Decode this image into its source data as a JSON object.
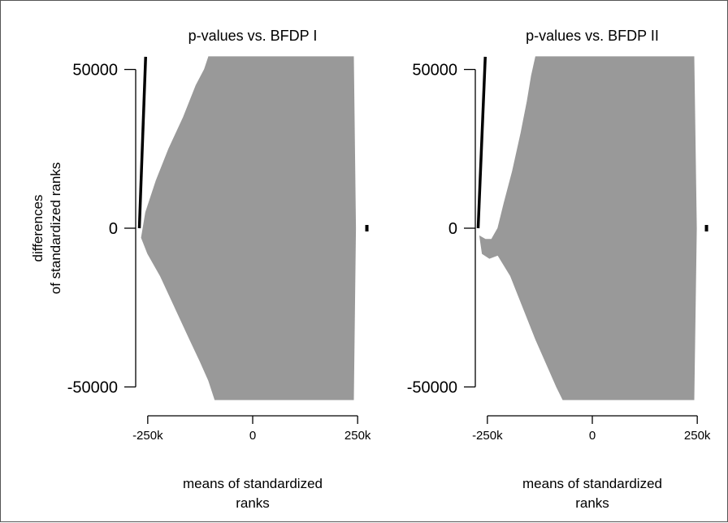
{
  "chart_data": [
    {
      "type": "scatter",
      "title": "p-values vs. BFDP I",
      "xlabel": "means of standardized ranks",
      "ylabel": "differences of standardized ranks",
      "x_ticks": [
        "-250k",
        "0",
        "250k"
      ],
      "y_ticks": [
        "50000",
        "0",
        "-50000"
      ],
      "xlim": [
        -300000,
        300000
      ],
      "ylim": [
        -55000,
        55000
      ],
      "tick_values": {
        "x": [
          -250000,
          0,
          250000
        ],
        "y": [
          50000,
          0,
          -50000
        ]
      },
      "dense_region": {
        "color": "#999999",
        "upper": [
          [
            -265000,
            -3000
          ],
          [
            -255000,
            5000
          ],
          [
            -230000,
            15000
          ],
          [
            -200000,
            25000
          ],
          [
            -165000,
            35000
          ],
          [
            -135000,
            45000
          ],
          [
            -115000,
            50000
          ],
          [
            -105000,
            54000
          ],
          [
            240000,
            54000
          ]
        ],
        "lower": [
          [
            -265000,
            -3000
          ],
          [
            -250000,
            -8000
          ],
          [
            -220000,
            -15000
          ],
          [
            -185000,
            -25000
          ],
          [
            -150000,
            -35000
          ],
          [
            -125000,
            -42000
          ],
          [
            -105000,
            -48000
          ],
          [
            -90000,
            -54000
          ],
          [
            240000,
            -54000
          ],
          [
            245000,
            0
          ]
        ]
      },
      "line_series": {
        "color": "#000000",
        "points": [
          [
            -270000,
            0
          ],
          [
            -255000,
            54000
          ]
        ]
      },
      "marker": {
        "color": "#000000",
        "points": [
          [
            272000,
            0
          ]
        ]
      }
    },
    {
      "type": "scatter",
      "title": "p-values vs. BFDP II",
      "xlabel": "means of standardized ranks",
      "ylabel": "",
      "x_ticks": [
        "-250k",
        "0",
        "250k"
      ],
      "y_ticks": [
        "50000",
        "0",
        "-50000"
      ],
      "xlim": [
        -300000,
        300000
      ],
      "ylim": [
        -55000,
        55000
      ],
      "tick_values": {
        "x": [
          -250000,
          0,
          250000
        ],
        "y": [
          50000,
          0,
          -50000
        ]
      },
      "dense_region": {
        "color": "#999999",
        "upper": [
          [
            -268000,
            -2500
          ],
          [
            -255000,
            -3500
          ],
          [
            -240000,
            -3500
          ],
          [
            -225000,
            0
          ],
          [
            -210000,
            8000
          ],
          [
            -190000,
            18000
          ],
          [
            -170000,
            30000
          ],
          [
            -155000,
            40000
          ],
          [
            -145000,
            48000
          ],
          [
            -135000,
            54000
          ],
          [
            242000,
            54000
          ]
        ],
        "lower": [
          [
            -268000,
            -2500
          ],
          [
            -262000,
            -8000
          ],
          [
            -245000,
            -9500
          ],
          [
            -225000,
            -8500
          ],
          [
            -195000,
            -15000
          ],
          [
            -165000,
            -25000
          ],
          [
            -135000,
            -35000
          ],
          [
            -105000,
            -44000
          ],
          [
            -85000,
            -50000
          ],
          [
            -70000,
            -54000
          ],
          [
            242000,
            -54000
          ],
          [
            248000,
            0
          ]
        ]
      },
      "line_series": {
        "color": "#000000",
        "points": [
          [
            -272000,
            0
          ],
          [
            -255000,
            54000
          ]
        ]
      },
      "marker": {
        "color": "#000000",
        "points": [
          [
            272000,
            0
          ]
        ]
      }
    }
  ]
}
